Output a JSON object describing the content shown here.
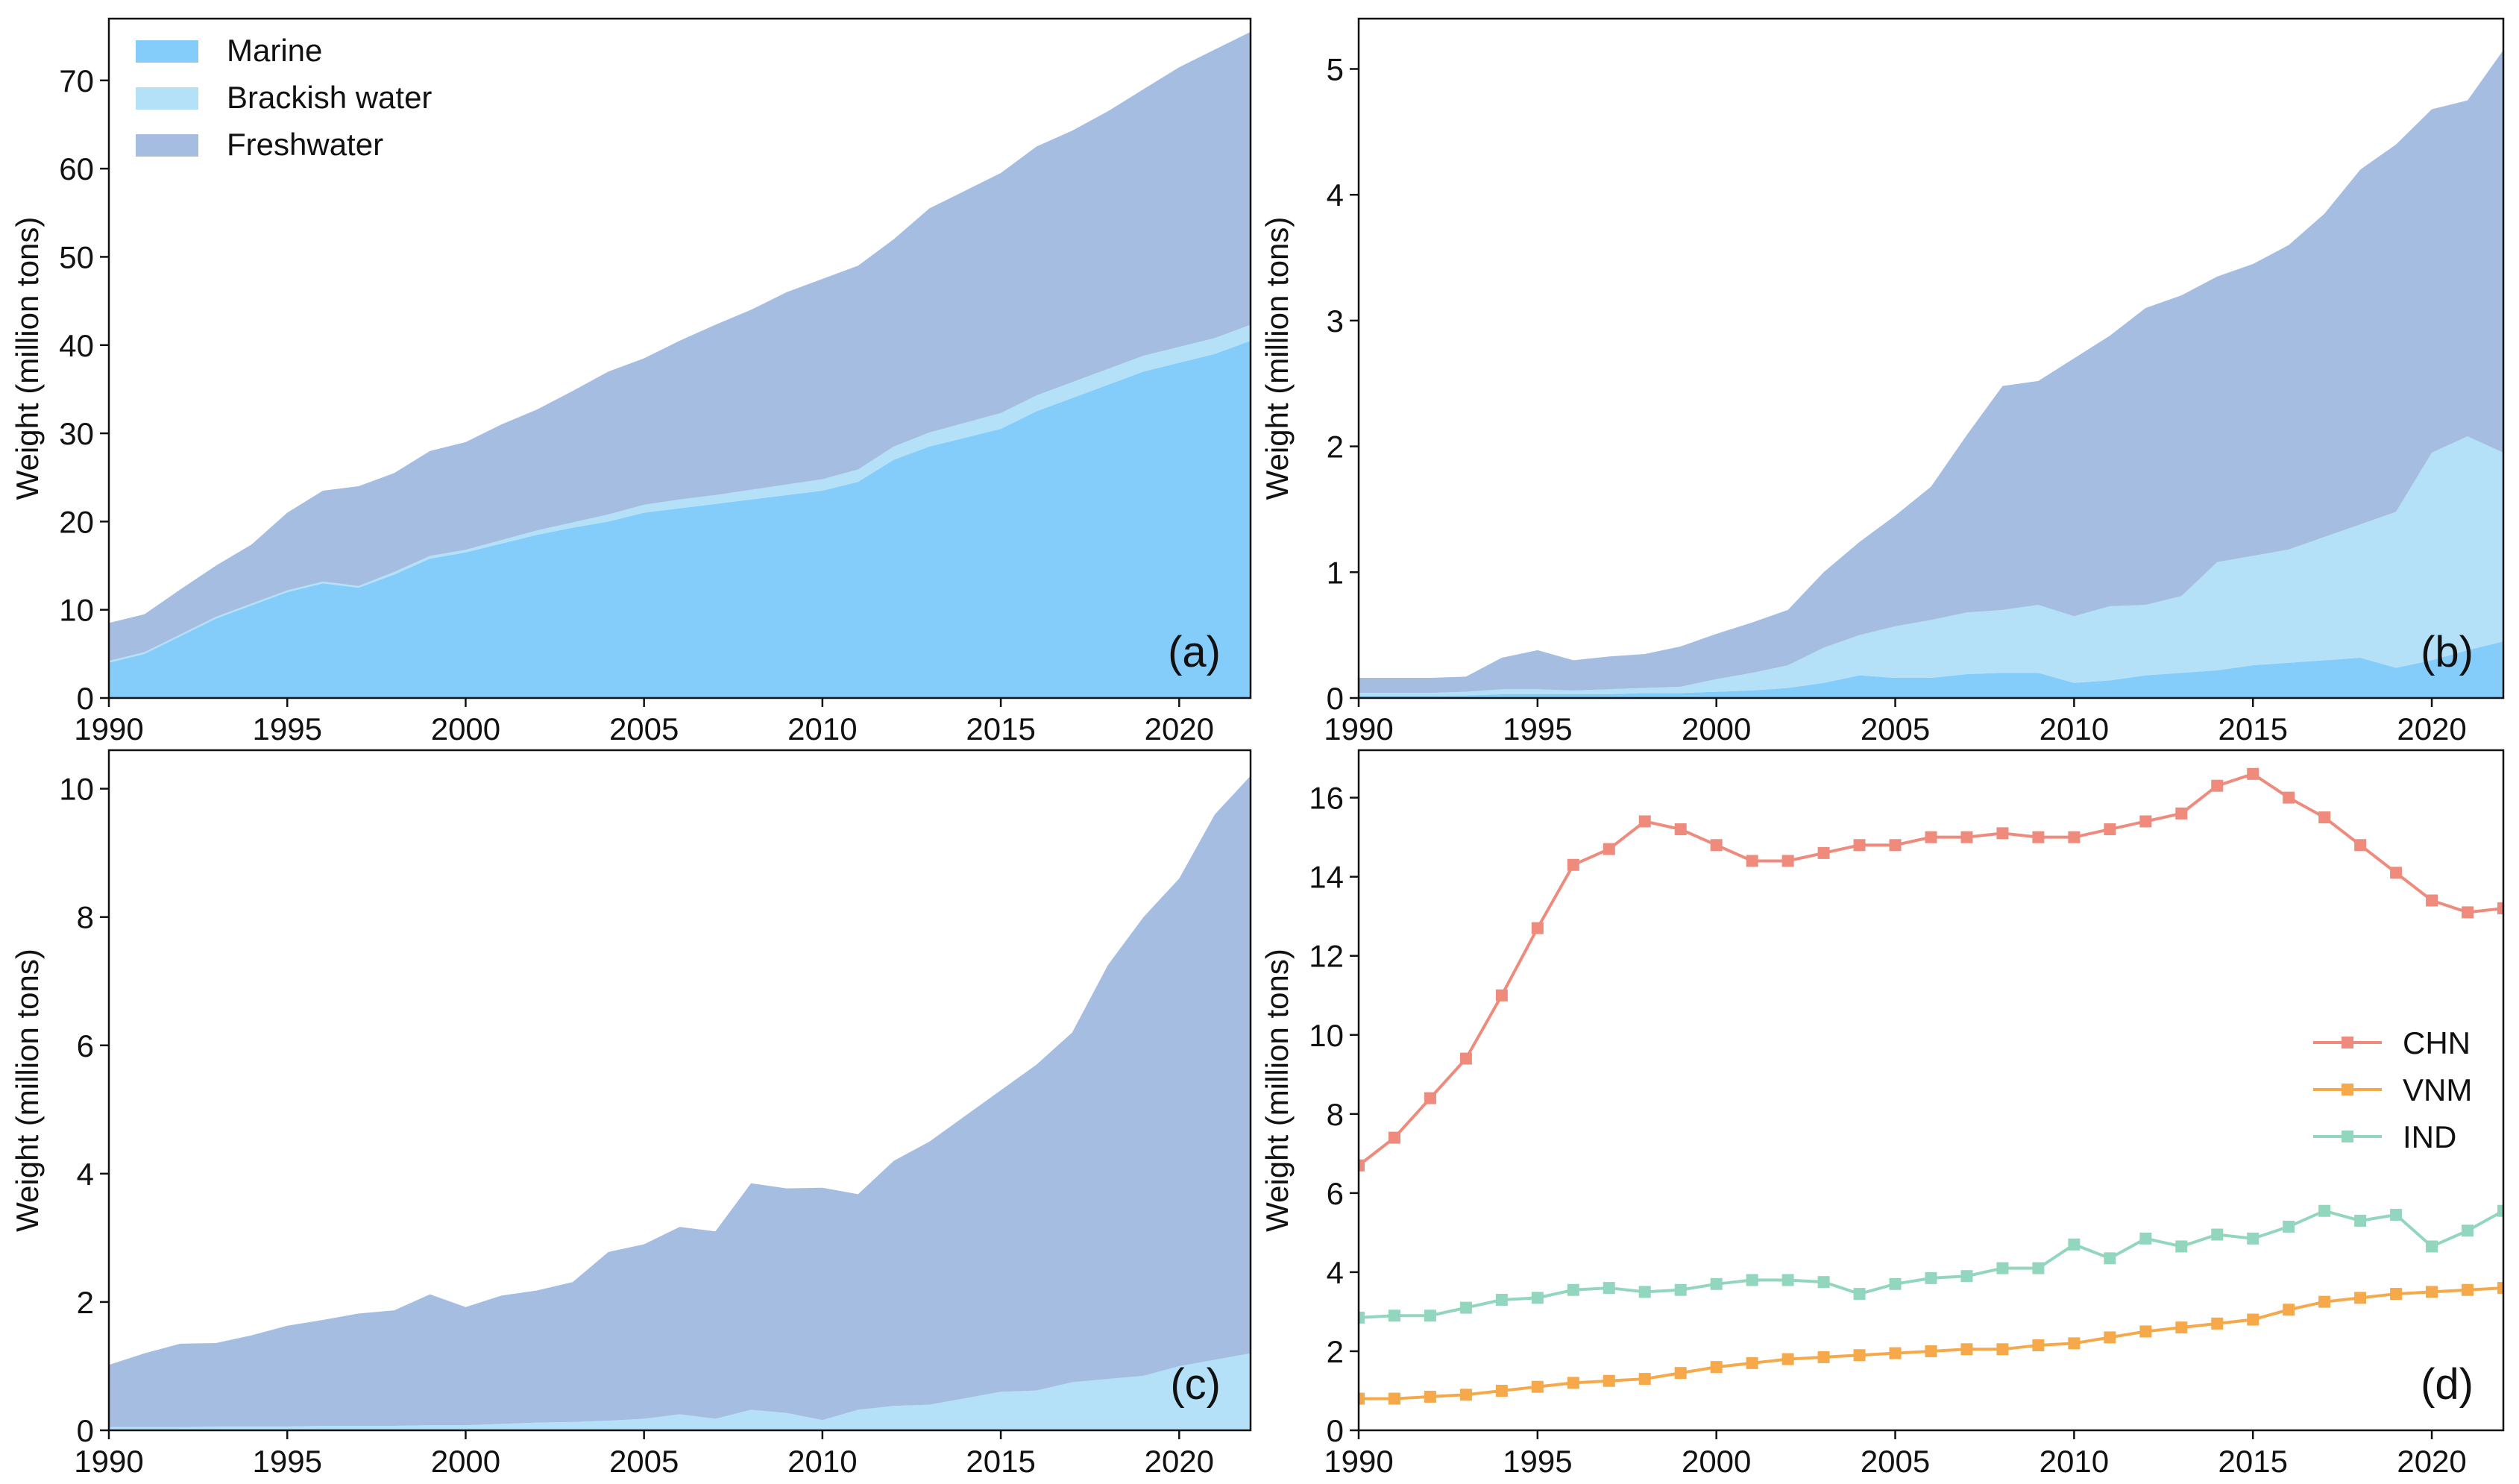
{
  "colors": {
    "marine": "#84CDFA",
    "brackish": "#B4E0F8",
    "freshwater": "#A4BDE1",
    "chn": "#EE8B7D",
    "vnm": "#F5A94A",
    "ind": "#93D6BE",
    "axis": "#111111"
  },
  "chart_data": [
    {
      "type": "area",
      "stacked": true,
      "panel_label": "(a)",
      "ylabel": "Weight (million tons)",
      "xlim": [
        1990,
        2022
      ],
      "ylim": [
        0,
        77
      ],
      "xticks": [
        1990,
        1995,
        2000,
        2005,
        2010,
        2015,
        2020
      ],
      "yticks": [
        0,
        10,
        20,
        30,
        40,
        50,
        60,
        70
      ],
      "legend": {
        "position": "top-left",
        "entries": [
          "Marine",
          "Brackish water",
          "Freshwater"
        ]
      },
      "x": [
        1990,
        1991,
        1992,
        1993,
        1994,
        1995,
        1996,
        1997,
        1998,
        1999,
        2000,
        2001,
        2002,
        2003,
        2004,
        2005,
        2006,
        2007,
        2008,
        2009,
        2010,
        2011,
        2012,
        2013,
        2014,
        2015,
        2016,
        2017,
        2018,
        2019,
        2020,
        2021,
        2022
      ],
      "series": [
        {
          "name": "Marine",
          "color_key": "marine",
          "values": [
            4,
            5,
            7,
            9,
            10.5,
            12,
            13,
            12.5,
            14,
            15.8,
            16.5,
            17.5,
            18.5,
            19.3,
            20,
            21,
            21.5,
            22,
            22.5,
            23,
            23.5,
            24.5,
            27,
            28.5,
            29.5,
            30.5,
            32.5,
            34,
            35.5,
            37,
            38,
            39,
            40.5
          ]
        },
        {
          "name": "Brackish water",
          "color_key": "brackish",
          "values": [
            0.2,
            0.2,
            0.2,
            0.2,
            0.2,
            0.2,
            0.2,
            0.2,
            0.3,
            0.3,
            0.3,
            0.4,
            0.5,
            0.6,
            0.8,
            0.9,
            1,
            1,
            1.1,
            1.2,
            1.3,
            1.4,
            1.5,
            1.6,
            1.7,
            1.8,
            1.8,
            1.8,
            1.8,
            1.8,
            1.8,
            1.8,
            1.8
          ]
        },
        {
          "name": "Freshwater",
          "color_key": "freshwater",
          "values": [
            4.3,
            4.3,
            5.1,
            5.8,
            6.7,
            8.8,
            10.3,
            11.3,
            11.2,
            11.9,
            12.2,
            13.1,
            13.7,
            14.9,
            16.2,
            16.6,
            18,
            19.3,
            20.4,
            21.8,
            22.7,
            23.1,
            23.5,
            25.4,
            26.3,
            27.2,
            28.2,
            28.5,
            29.2,
            30.2,
            31.7,
            32.7,
            33.2
          ]
        }
      ]
    },
    {
      "type": "area",
      "stacked": true,
      "panel_label": "(b)",
      "ylabel": "Weight (million tons)",
      "xlim": [
        1990,
        2022
      ],
      "ylim": [
        0,
        5.4
      ],
      "xticks": [
        1990,
        1995,
        2000,
        2005,
        2010,
        2015,
        2020
      ],
      "yticks": [
        0,
        1,
        2,
        3,
        4,
        5
      ],
      "x": [
        1990,
        1991,
        1992,
        1993,
        1994,
        1995,
        1996,
        1997,
        1998,
        1999,
        2000,
        2001,
        2002,
        2003,
        2004,
        2005,
        2006,
        2007,
        2008,
        2009,
        2010,
        2011,
        2012,
        2013,
        2014,
        2015,
        2016,
        2017,
        2018,
        2019,
        2020,
        2021,
        2022
      ],
      "series": [
        {
          "name": "Marine",
          "color_key": "marine",
          "values": [
            0.02,
            0.02,
            0.02,
            0.02,
            0.03,
            0.03,
            0.03,
            0.03,
            0.04,
            0.04,
            0.05,
            0.06,
            0.08,
            0.12,
            0.18,
            0.16,
            0.16,
            0.19,
            0.2,
            0.2,
            0.12,
            0.14,
            0.18,
            0.2,
            0.22,
            0.26,
            0.28,
            0.3,
            0.32,
            0.24,
            0.3,
            0.38,
            0.45
          ]
        },
        {
          "name": "Brackish water",
          "color_key": "brackish",
          "values": [
            0.02,
            0.02,
            0.02,
            0.03,
            0.04,
            0.04,
            0.03,
            0.04,
            0.04,
            0.05,
            0.1,
            0.14,
            0.18,
            0.28,
            0.32,
            0.41,
            0.46,
            0.49,
            0.5,
            0.54,
            0.53,
            0.59,
            0.56,
            0.61,
            0.86,
            0.87,
            0.9,
            0.98,
            1.06,
            1.24,
            1.65,
            1.7,
            1.5
          ]
        },
        {
          "name": "Freshwater",
          "color_key": "freshwater",
          "values": [
            0.12,
            0.12,
            0.12,
            0.12,
            0.25,
            0.31,
            0.24,
            0.26,
            0.27,
            0.32,
            0.36,
            0.4,
            0.44,
            0.6,
            0.74,
            0.88,
            1.06,
            1.41,
            1.78,
            1.78,
            2.05,
            2.15,
            2.36,
            2.39,
            2.27,
            2.32,
            2.42,
            2.57,
            2.82,
            2.92,
            2.73,
            2.67,
            3.2
          ]
        }
      ]
    },
    {
      "type": "area",
      "stacked": true,
      "panel_label": "(c)",
      "ylabel": "Weight (million tons)",
      "xlim": [
        1990,
        2022
      ],
      "ylim": [
        0,
        10.6
      ],
      "xticks": [
        1990,
        1995,
        2000,
        2005,
        2010,
        2015,
        2020
      ],
      "yticks": [
        0,
        2,
        4,
        6,
        8,
        10
      ],
      "x": [
        1990,
        1991,
        1992,
        1993,
        1994,
        1995,
        1996,
        1997,
        1998,
        1999,
        2000,
        2001,
        2002,
        2003,
        2004,
        2005,
        2006,
        2007,
        2008,
        2009,
        2010,
        2011,
        2012,
        2013,
        2014,
        2015,
        2016,
        2017,
        2018,
        2019,
        2020,
        2021,
        2022
      ],
      "series": [
        {
          "name": "Marine",
          "color_key": "marine",
          "values": [
            0,
            0,
            0,
            0,
            0,
            0,
            0,
            0,
            0,
            0,
            0,
            0,
            0,
            0,
            0,
            0,
            0,
            0,
            0,
            0,
            0,
            0,
            0,
            0,
            0,
            0,
            0,
            0,
            0,
            0,
            0,
            0,
            0
          ]
        },
        {
          "name": "Brackish water",
          "color_key": "brackish",
          "values": [
            0.05,
            0.05,
            0.05,
            0.06,
            0.06,
            0.06,
            0.07,
            0.07,
            0.07,
            0.08,
            0.08,
            0.1,
            0.12,
            0.13,
            0.15,
            0.18,
            0.25,
            0.18,
            0.32,
            0.27,
            0.16,
            0.32,
            0.38,
            0.4,
            0.5,
            0.6,
            0.62,
            0.75,
            0.8,
            0.85,
            1.0,
            1.1,
            1.2
          ]
        },
        {
          "name": "Freshwater",
          "color_key": "freshwater",
          "values": [
            0.97,
            1.15,
            1.3,
            1.3,
            1.42,
            1.57,
            1.65,
            1.75,
            1.8,
            2.04,
            1.84,
            2.0,
            2.06,
            2.18,
            2.63,
            2.72,
            2.92,
            2.92,
            3.53,
            3.5,
            3.62,
            3.36,
            3.82,
            4.1,
            4.4,
            4.7,
            5.08,
            5.45,
            6.45,
            7.15,
            7.6,
            8.5,
            9.0
          ]
        }
      ]
    },
    {
      "type": "line",
      "panel_label": "(d)",
      "ylabel": "Weight (million tons)",
      "xlim": [
        1990,
        2022
      ],
      "ylim": [
        0,
        17.2
      ],
      "xticks": [
        1990,
        1995,
        2000,
        2005,
        2010,
        2015,
        2020
      ],
      "yticks": [
        0,
        2,
        4,
        6,
        8,
        10,
        12,
        14,
        16
      ],
      "legend": {
        "position": "center-right",
        "entries": [
          "CHN",
          "VNM",
          "IND"
        ]
      },
      "x": [
        1990,
        1991,
        1992,
        1993,
        1994,
        1995,
        1996,
        1997,
        1998,
        1999,
        2000,
        2001,
        2002,
        2003,
        2004,
        2005,
        2006,
        2007,
        2008,
        2009,
        2010,
        2011,
        2012,
        2013,
        2014,
        2015,
        2016,
        2017,
        2018,
        2019,
        2020,
        2021,
        2022
      ],
      "series": [
        {
          "name": "CHN",
          "color_key": "chn",
          "values": [
            6.7,
            7.4,
            8.4,
            9.4,
            11.0,
            12.7,
            14.3,
            14.7,
            15.4,
            15.2,
            14.8,
            14.4,
            14.4,
            14.6,
            14.8,
            14.8,
            15.0,
            15.0,
            15.1,
            15.0,
            15.0,
            15.2,
            15.4,
            15.6,
            16.3,
            16.6,
            16.0,
            15.5,
            14.8,
            14.1,
            13.4,
            13.1,
            13.2
          ]
        },
        {
          "name": "VNM",
          "color_key": "vnm",
          "values": [
            0.8,
            0.8,
            0.85,
            0.9,
            1.0,
            1.1,
            1.2,
            1.25,
            1.3,
            1.45,
            1.6,
            1.7,
            1.8,
            1.85,
            1.9,
            1.95,
            2.0,
            2.05,
            2.05,
            2.15,
            2.2,
            2.35,
            2.5,
            2.6,
            2.7,
            2.8,
            3.05,
            3.25,
            3.35,
            3.45,
            3.5,
            3.55,
            3.6
          ]
        },
        {
          "name": "IND",
          "color_key": "ind",
          "values": [
            2.85,
            2.9,
            2.9,
            3.1,
            3.3,
            3.35,
            3.55,
            3.6,
            3.5,
            3.55,
            3.7,
            3.8,
            3.8,
            3.75,
            3.45,
            3.7,
            3.85,
            3.9,
            4.1,
            4.1,
            4.7,
            4.35,
            4.85,
            4.65,
            4.95,
            4.85,
            5.15,
            5.55,
            5.3,
            5.45,
            4.65,
            5.05,
            5.55
          ]
        }
      ]
    }
  ]
}
